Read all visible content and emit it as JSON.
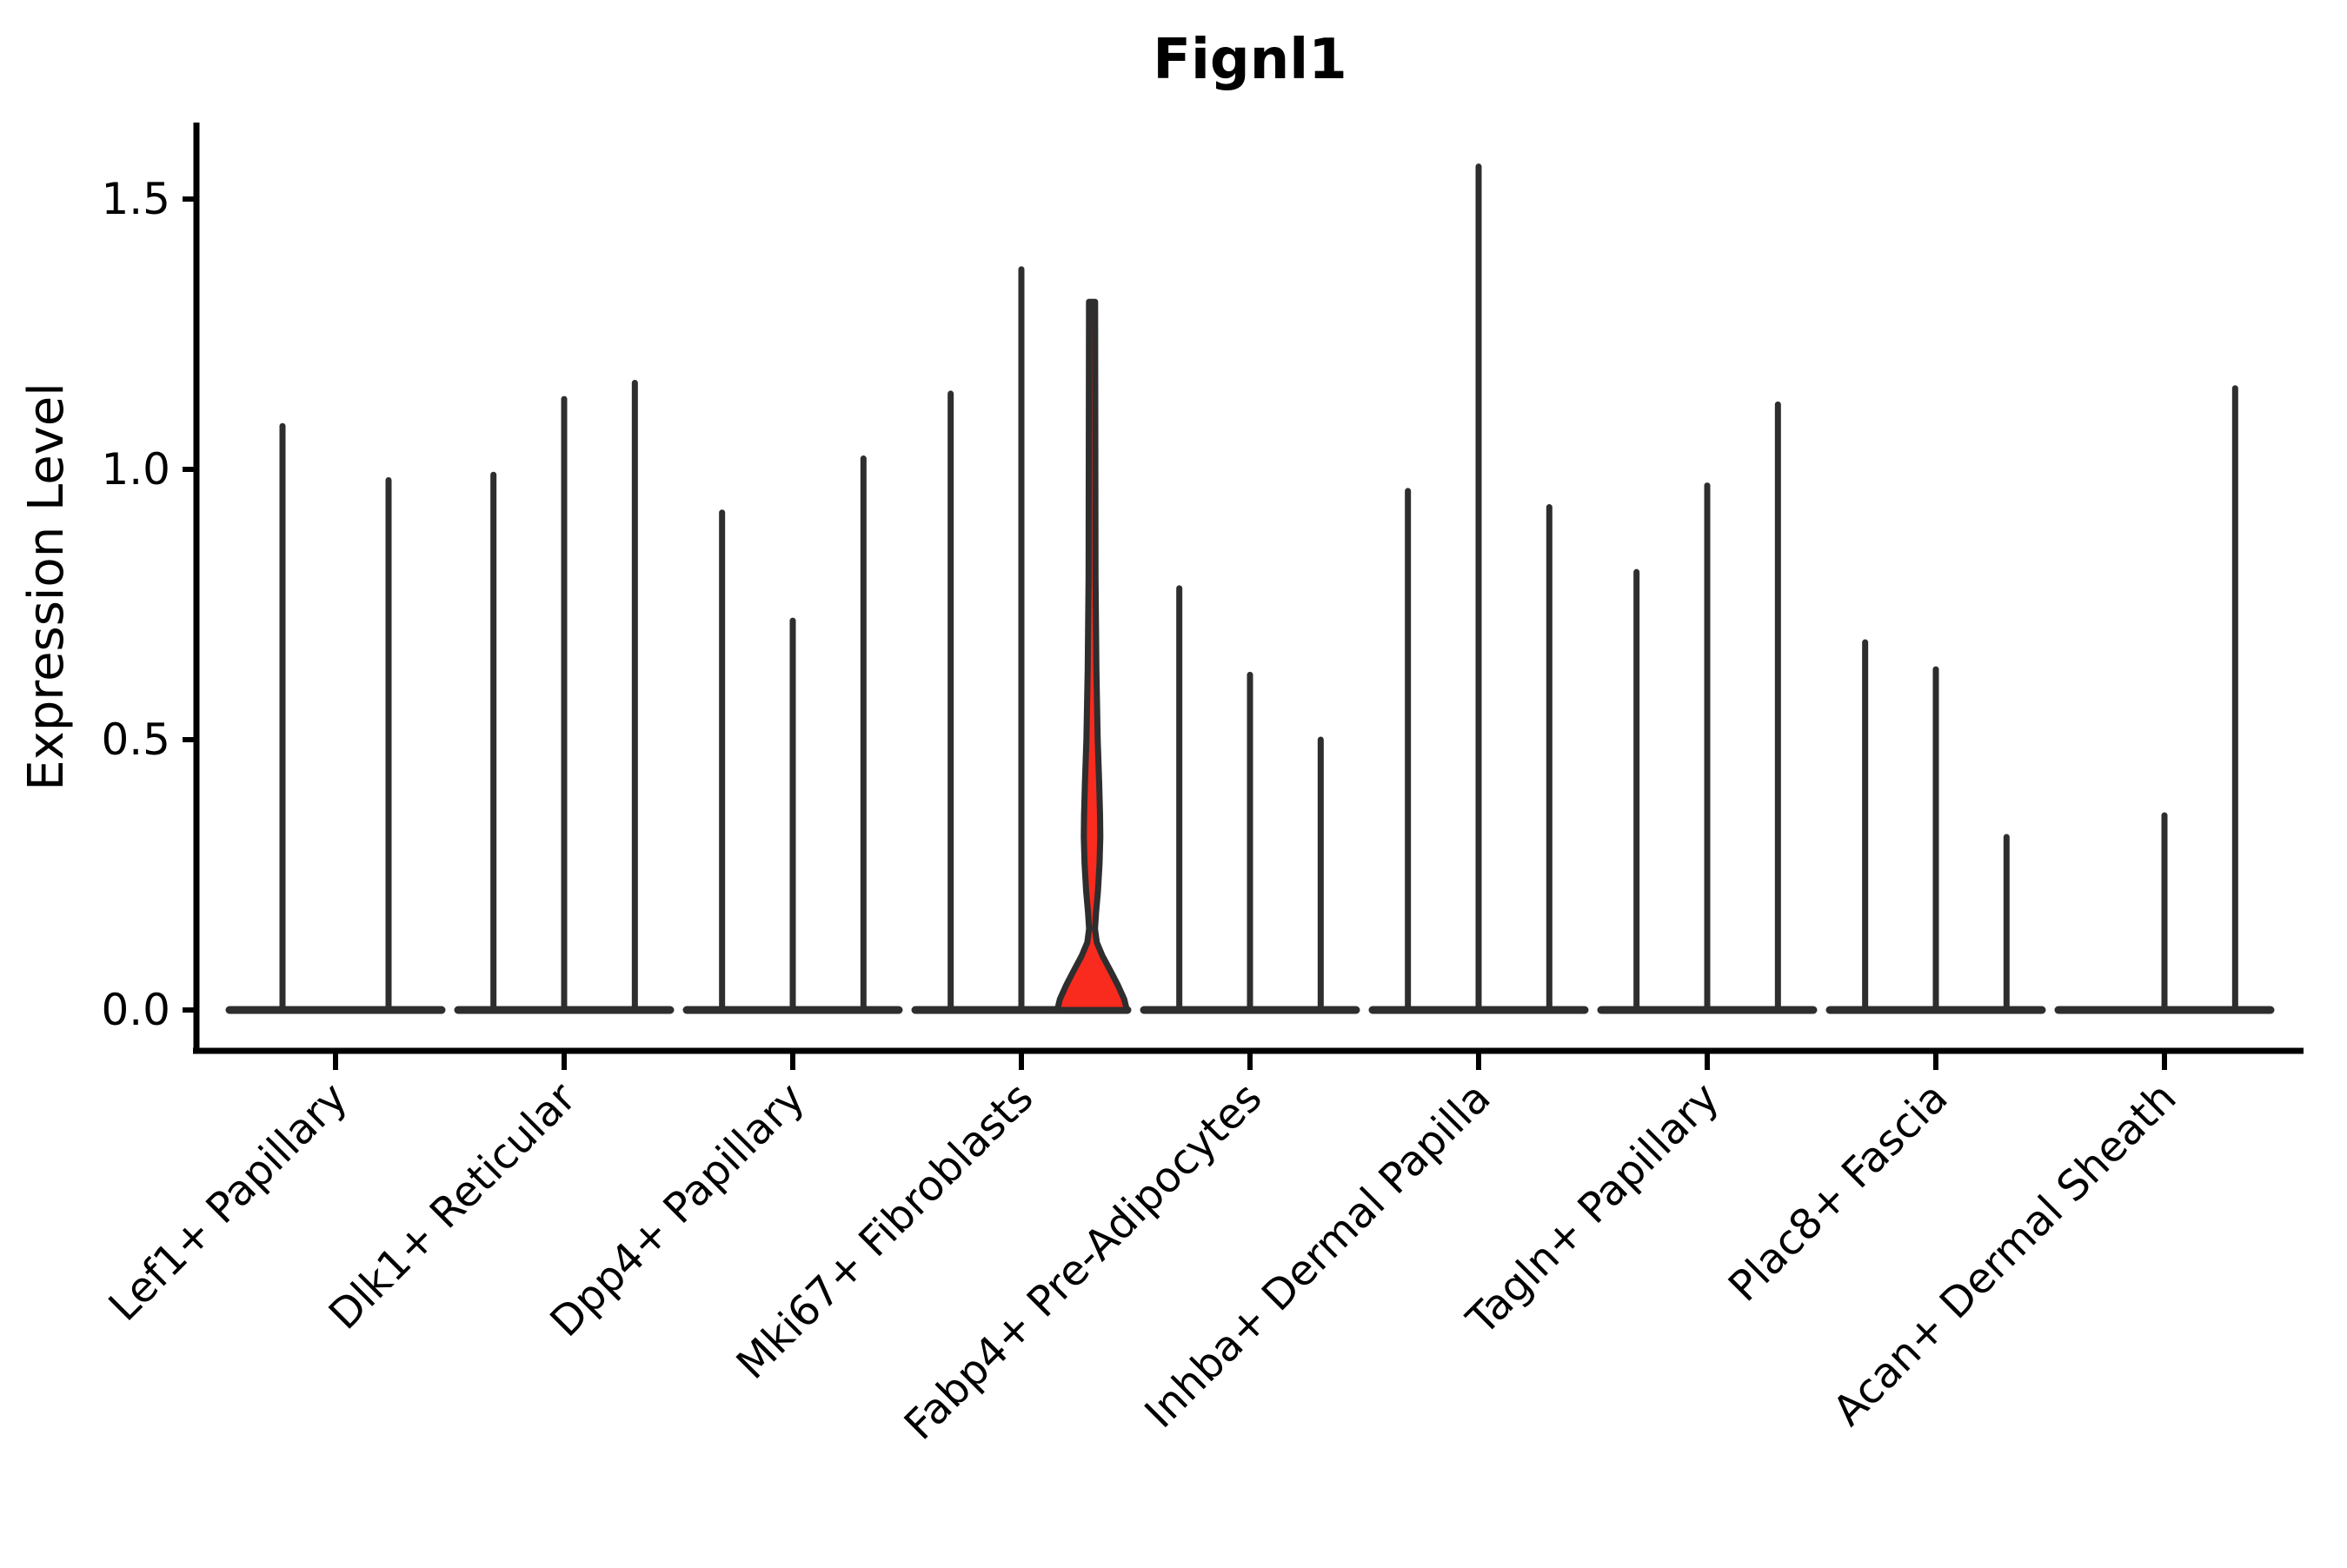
{
  "chart_data": {
    "type": "violin",
    "title": "Fignl1",
    "ylabel": "Expression Level",
    "xlabel": "",
    "grid": false,
    "legend": null,
    "ylim": [
      0,
      1.62
    ],
    "yticks": [
      {
        "value": 0.0,
        "label": "0.0"
      },
      {
        "value": 0.5,
        "label": "0.5"
      },
      {
        "value": 1.0,
        "label": "1.0"
      },
      {
        "value": 1.5,
        "label": "1.5"
      }
    ],
    "categories": [
      "Lef1+ Papillary",
      "Dlk1+ Reticular",
      "Dpp4+ Papillary",
      "Mki67+ Fibroblasts",
      "Fabp4+ Pre-Adipocytes",
      "Inhba+ Dermal Papilla",
      "Tagln+ Papillary",
      "Plac8+ Fascia",
      "Acan+ Dermal Sheath"
    ],
    "groups": [
      {
        "category": "Lef1+ Papillary",
        "violins": [
          {
            "max": 1.08
          },
          {
            "max": 0.98
          }
        ]
      },
      {
        "category": "Dlk1+ Reticular",
        "violins": [
          {
            "max": 0.99
          },
          {
            "max": 1.13
          },
          {
            "max": 1.16
          }
        ]
      },
      {
        "category": "Dpp4+ Papillary",
        "violins": [
          {
            "max": 0.92
          },
          {
            "max": 0.72
          },
          {
            "max": 1.02
          }
        ]
      },
      {
        "category": "Mki67+ Fibroblasts",
        "violins": [
          {
            "max": 1.14
          },
          {
            "max": 1.37
          },
          {
            "max": 1.31,
            "highlighted": true,
            "bulge_top": 0.63,
            "bulge_center": 0.32,
            "waist": 0.15,
            "bell_top": 0.12
          }
        ]
      },
      {
        "category": "Fabp4+ Pre-Adipocytes",
        "violins": [
          {
            "max": 0.78
          },
          {
            "max": 0.62
          },
          {
            "max": 0.5
          }
        ]
      },
      {
        "category": "Inhba+ Dermal Papilla",
        "violins": [
          {
            "max": 0.96
          },
          {
            "max": 1.56
          },
          {
            "max": 0.93
          }
        ]
      },
      {
        "category": "Tagln+ Papillary",
        "violins": [
          {
            "max": 0.81
          },
          {
            "max": 0.97
          },
          {
            "max": 1.12
          }
        ]
      },
      {
        "category": "Plac8+ Fascia",
        "violins": [
          {
            "max": 0.68
          },
          {
            "max": 0.63
          },
          {
            "max": 0.32
          }
        ]
      },
      {
        "category": "Acan+ Dermal Sheath",
        "violins": [
          {
            "max": 0
          },
          {
            "max": 0.36
          },
          {
            "max": 1.15
          }
        ]
      }
    ],
    "colors": {
      "violin_outline": "#2E2E2E",
      "highlight_fill": "#F92A1E",
      "axis": "#000000",
      "background": "#FFFFFF"
    }
  }
}
